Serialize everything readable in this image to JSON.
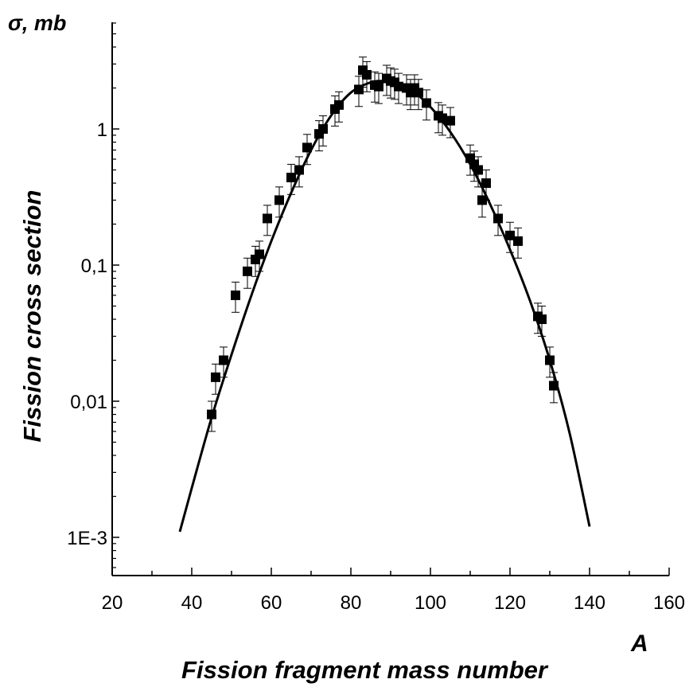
{
  "chart_data": {
    "type": "scatter",
    "title": "",
    "xlabel": "Fission fragment mass number",
    "xunit_label": "A",
    "ylabel": "Fission cross section",
    "yunit_label": "σ, mb",
    "xlim": [
      20,
      160
    ],
    "ylim": [
      0.0003,
      6
    ],
    "y_scale": "log",
    "x_ticks": [
      20,
      40,
      60,
      80,
      100,
      120,
      140,
      160
    ],
    "y_ticks": [
      0.001,
      0.01,
      0.1,
      1
    ],
    "y_tick_labels": [
      "1E-3",
      "0,01",
      "0,1",
      "1"
    ],
    "grid": false,
    "legend": "none",
    "series": [
      {
        "kind": "points_with_error_bars",
        "marker": "filled-square",
        "x": [
          45,
          46,
          48,
          51,
          54,
          56,
          57,
          59,
          62,
          65,
          67,
          69,
          72,
          73,
          76,
          77,
          82,
          83,
          84,
          86,
          87,
          89,
          90,
          91,
          92,
          94,
          95,
          96,
          97,
          99,
          102,
          103,
          105,
          110,
          111,
          112,
          113,
          114,
          117,
          120,
          122,
          127,
          128,
          130,
          131
        ],
        "y": [
          0.008,
          0.015,
          0.02,
          0.06,
          0.09,
          0.11,
          0.12,
          0.22,
          0.3,
          0.44,
          0.5,
          0.73,
          0.92,
          1.0,
          1.4,
          1.5,
          1.95,
          2.7,
          2.5,
          2.1,
          2.05,
          2.35,
          2.25,
          2.2,
          2.05,
          2.0,
          1.85,
          2.0,
          1.85,
          1.55,
          1.25,
          1.2,
          1.15,
          0.61,
          0.55,
          0.5,
          0.3,
          0.4,
          0.22,
          0.165,
          0.15,
          0.042,
          0.04,
          0.02,
          0.013
        ],
        "y_err_rel": 0.25
      },
      {
        "kind": "fit_curve",
        "x": [
          37,
          40,
          45,
          50,
          55,
          60,
          65,
          70,
          75,
          80,
          85,
          88,
          90,
          95,
          100,
          105,
          110,
          115,
          120,
          125,
          130,
          135,
          140
        ],
        "y": [
          0.0011,
          0.0023,
          0.0076,
          0.022,
          0.06,
          0.15,
          0.34,
          0.7,
          1.25,
          1.85,
          2.2,
          2.25,
          2.22,
          1.95,
          1.45,
          0.95,
          0.55,
          0.28,
          0.13,
          0.055,
          0.02,
          0.0058,
          0.0012
        ]
      }
    ]
  }
}
